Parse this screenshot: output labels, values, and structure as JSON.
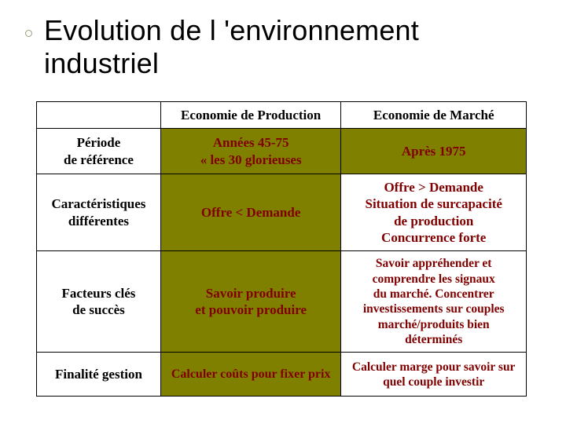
{
  "title_line1": "Evolution de l 'environnement",
  "title_line2": "industriel",
  "table": {
    "bg_olive": "background:#808000;color:#800000;",
    "bg_white": "background:#ffffff;color:#800000;",
    "headers": {
      "col1": "Economie de Production",
      "col2": "Economie de Marché"
    },
    "rows": {
      "periode": {
        "label_l1": "Période",
        "label_l2": "de référence",
        "c1_l1": "Années 45-75",
        "c1_l2": "« les 30 glorieuses",
        "c2": "Après 1975"
      },
      "carac": {
        "label_l1": "Caractéristiques",
        "label_l2": "différentes",
        "c1": "Offre < Demande",
        "c2_l1": "Offre > Demande",
        "c2_l2": "Situation de surcapacité",
        "c2_l3": "de production",
        "c2_l4": "Concurrence forte"
      },
      "fact": {
        "label_l1": "Facteurs clés",
        "label_l2": "de succès",
        "c1_l1": "Savoir produire",
        "c1_l2": "et pouvoir produire",
        "c2_l1": "Savoir appréhender et",
        "c2_l2": "comprendre les signaux",
        "c2_l3": "du marché. Concentrer",
        "c2_l4": "investissements sur couples",
        "c2_l5": "marché/produits bien déterminés"
      },
      "final": {
        "label": "Finalité gestion",
        "c1": "Calculer coûts pour fixer prix",
        "c2_l1": "Calculer marge pour savoir sur",
        "c2_l2": "quel couple investir"
      }
    }
  }
}
